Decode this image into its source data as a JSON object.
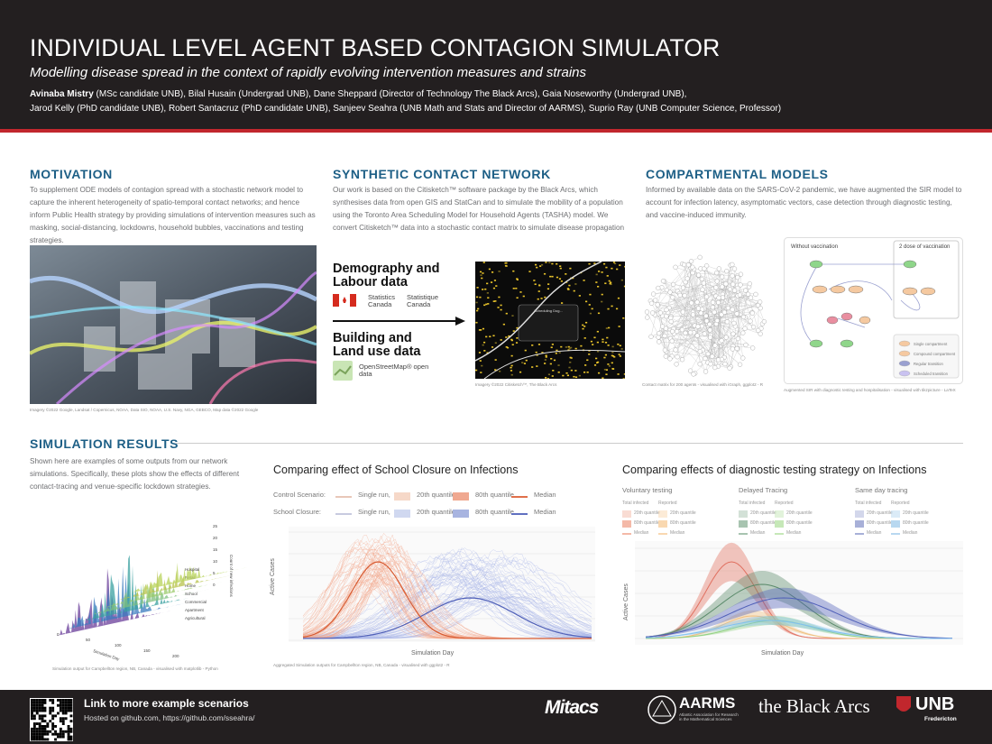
{
  "header": {
    "title": "INDIVIDUAL LEVEL AGENT BASED CONTAGION SIMULATOR",
    "subtitle": "Modelling disease spread in the context of rapidly evolving intervention measures and strains",
    "authors_lead": "Avinaba Mistry",
    "authors_line1": " (MSc candidate UNB), Bilal Husain (Undergrad UNB), Dane Sheppard (Director of Technology The Black Arcs), Gaia Noseworthy (Undergrad UNB),",
    "authors_line2": "Jarod Kelly (PhD candidate UNB), Robert Santacruz (PhD candidate UNB), Sanjeev Seahra (UNB Math and Stats and Director of AARMS),  Suprio Ray (UNB Computer Science, Professor)"
  },
  "motivation": {
    "heading": "MOTIVATION",
    "body": "To supplement ODE models of contagion spread with a stochastic network model to capture the inherent heterogeneity of spatio-temporal contact networks; and hence inform Public Health strategy by providing simulations of  intervention measures such as masking, social-distancing, lockdowns, household bubbles, vaccinations and testing strategies.",
    "caption": "Imagery ©2022 Google, Landsat / Copernicus, NOAA, Data SIO, NOAA, U.S. Navy, NGA, GEBCO, Map data ©2022 Google"
  },
  "network": {
    "heading": "SYNTHETIC CONTACT NETWORK",
    "body": "Our work is based on the Citisketch™ software package by the Black Arcs, which synthesises data from open GIS and StatCan and to simulate the mobility of a population using the Toronto Area Scheduling Model for Household Agents (TASHA) model.  We convert Citisketch™  data into a stochastic contact matrix to simulate disease propagation",
    "demography": "Demography and Labour data",
    "statcan_en": "Statistics Canada",
    "statcan_fr": "Statistique Canada",
    "building": "Building and Land use data",
    "osm": "OpenStreetMap® open data",
    "popup": "Scheduling Dog...",
    "caption": "Imagery ©2022 Citisketch™, The Black Arcs"
  },
  "compartmental": {
    "heading": "COMPARTMENTAL MODELS",
    "body": "Informed by available data on the SARS-CoV-2 pandemic, we have augmented the SIR model to account for infection latency, asymptomatic vectors, case detection through diagnostic testing, and vaccine-induced immunity.",
    "panel_left": "Without vaccination",
    "panel_right": "2 dose of vaccination",
    "legend": [
      "Single compartment",
      "Compound compartment",
      "Regular transition",
      "Scheduled transition"
    ],
    "caption_left": "Contact matrix for 200 agents - visualised with iGraph, ggplot2 - R",
    "caption_right": "Augmented SIR with diagnostic testing and hospitalisation - visualised with tikzpicture - LaTeX"
  },
  "results": {
    "heading": "SIMULATION RESULTS",
    "body": "Shown here are examples of some outputs from our network simulations.  Specifically, these plots show the effects of different contact-tracing and venue-specific lockdown strategies.",
    "surface": {
      "z_label": "Count of new infections",
      "z_ticks": [
        "0",
        "5",
        "10",
        "15",
        "20",
        "25"
      ],
      "x_label": "Simulation Day",
      "x_ticks": [
        "0",
        "50",
        "100",
        "150",
        "200"
      ],
      "locations": [
        "Hospital",
        "Retail",
        "Home",
        "School",
        "Commercial",
        "Apartment",
        "Agricultural"
      ],
      "caption": "Simulation output for Campbellton region, NB, Canada - visualised with matplotlib - Python"
    },
    "school": {
      "title": "Comparing effect of School Closure on Infections",
      "rows": [
        {
          "label": "Control Scenario:",
          "items": [
            "Single run,",
            "20th quantile,",
            "80th quantile,",
            "Median"
          ]
        },
        {
          "label": "School Closure:",
          "items": [
            "Single run,",
            "20th quantile,",
            "80th quantile,",
            "Median"
          ]
        }
      ],
      "y_label": "Active Cases",
      "x_label": "Simulation Day",
      "caption": "Aggregated Simulation outputs for Campbellton region, NB, Canada - visualised with ggplot2 - R"
    },
    "testing": {
      "title": "Comparing effects of diagnostic testing strategy on Infections",
      "groups": [
        {
          "name": "Voluntary testing",
          "columns": [
            "Total infected",
            "Reported"
          ],
          "items": [
            "20th quantile",
            "80th quantile",
            "Median"
          ]
        },
        {
          "name": "Delayed Tracing",
          "columns": [
            "Total infected",
            "Reported"
          ],
          "items": [
            "20th quantile",
            "80th quantile",
            "Median"
          ]
        },
        {
          "name": "Same day tracing",
          "columns": [
            "Total infected",
            "Reported"
          ],
          "items": [
            "20th quantile",
            "80th quantile",
            "Median"
          ]
        }
      ],
      "y_label": "Active Cases",
      "x_label": "Simulation Day"
    }
  },
  "footer": {
    "link_title": "Link to more example scenarios",
    "link_sub": "Hosted on github.com, https://github.com/sseahra/",
    "logo_mitacs": "Mitacs",
    "logo_aarms": "AARMS",
    "logo_aarms_sub": "Atlantic Association for Research in the Mathematical Sciences",
    "logo_blackarcs": "the Black Arcs",
    "logo_unb": "UNB",
    "logo_unb_sub": "Fredericton"
  }
}
